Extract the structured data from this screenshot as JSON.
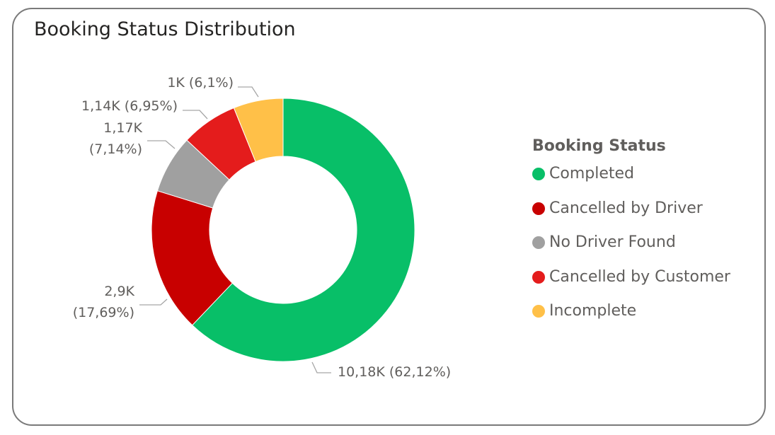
{
  "chart_data": {
    "type": "pie",
    "title": "Booking Status Distribution",
    "legend_title": "Booking Status",
    "legend_position": "right",
    "slices": [
      {
        "name": "Completed",
        "value": 10180,
        "label": "10,18K (62,12%)",
        "color": "#08bf68"
      },
      {
        "name": "Cancelled by Driver",
        "value": 2900,
        "label": "2,9K (17,69%)",
        "color": "#c80000"
      },
      {
        "name": "No Driver Found",
        "value": 1170,
        "label": "1,17K (7,14%)",
        "color": "#a0a0a0"
      },
      {
        "name": "Cancelled by Customer",
        "value": 1140,
        "label": "1,14K (6,95%)",
        "color": "#e41c1c"
      },
      {
        "name": "Incomplete",
        "value": 1000,
        "label": "1K (6,1%)",
        "color": "#ffc048"
      }
    ]
  }
}
